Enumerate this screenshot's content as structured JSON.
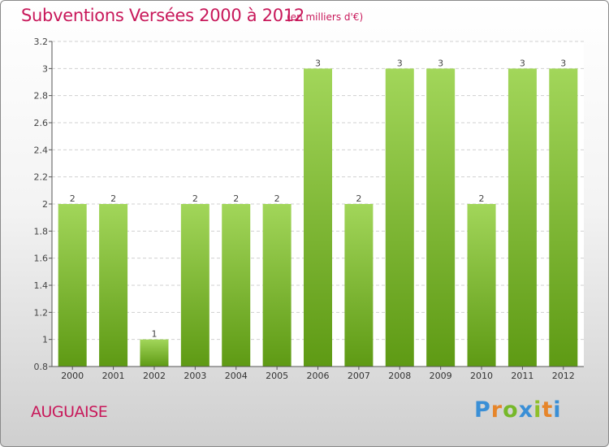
{
  "title": "Subventions Versées 2000 à 2012",
  "unit_note": "(en milliers d'€)",
  "commune": "AUGUAISE",
  "logo": {
    "text": "Proxiti",
    "letter_colors": [
      "#3a8fd6",
      "#e6852a",
      "#76b82a",
      "#3a8fd6",
      "#8fbf2a",
      "#e6852a",
      "#3a8fd6"
    ]
  },
  "colors": {
    "title": "#c8185a",
    "bar_top": "#a2d65a",
    "bar_bottom": "#5e9a14",
    "axis": "#555555",
    "grid": "#d0d0d0"
  },
  "chart_data": {
    "type": "bar",
    "title": "Subventions Versées 2000 à 2012",
    "xlabel": "",
    "ylabel": "",
    "categories": [
      "2000",
      "2001",
      "2002",
      "2003",
      "2004",
      "2005",
      "2006",
      "2007",
      "2008",
      "2009",
      "2010",
      "2011",
      "2012"
    ],
    "values": [
      2,
      2,
      1,
      2,
      2,
      2,
      3,
      2,
      3,
      3,
      2,
      3,
      3
    ],
    "data_labels": [
      "2",
      "2",
      "1",
      "2",
      "2",
      "2",
      "3",
      "2",
      "3",
      "3",
      "2",
      "3",
      "3"
    ],
    "ylim": [
      0.8,
      3.2
    ],
    "yticks": [
      0.8,
      1,
      1.2,
      1.4,
      1.6,
      1.8,
      2,
      2.2,
      2.4,
      2.6,
      2.8,
      3,
      3.2
    ],
    "ytick_labels": [
      "0.8",
      "1",
      "1.2",
      "1.4",
      "1.6",
      "1.8",
      "2",
      "2.2",
      "2.4",
      "2.6",
      "2.8",
      "3",
      "3.2"
    ],
    "grid": "horizontal",
    "legend": "none"
  }
}
